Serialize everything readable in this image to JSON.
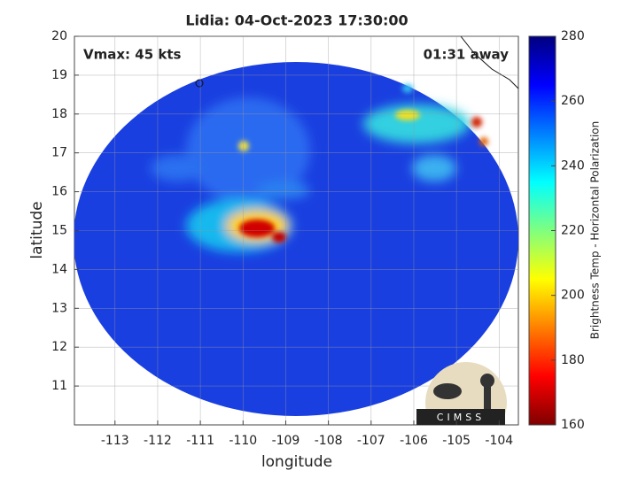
{
  "chart_data": {
    "type": "heatmap",
    "title": "Lidia: 04-Oct-2023 17:30:00",
    "annotations": [
      "Vmax: 45 kts",
      "01:31 away"
    ],
    "xlabel": "longitude",
    "ylabel": "latitude",
    "xlim": [
      -113.95,
      -103.55
    ],
    "ylim": [
      10,
      20
    ],
    "xticks": [
      -113,
      -112,
      -111,
      -110,
      -109,
      -108,
      -107,
      -106,
      -105,
      -104
    ],
    "yticks": [
      11,
      12,
      13,
      14,
      15,
      16,
      17,
      18,
      19,
      20
    ],
    "grid": true,
    "colorbar": {
      "label": "Brightness Temp - Horizontal Polarization",
      "lim": [
        160,
        280
      ],
      "ticks": [
        160,
        180,
        200,
        220,
        240,
        260,
        280
      ]
    },
    "logo": "CIMSS"
  }
}
